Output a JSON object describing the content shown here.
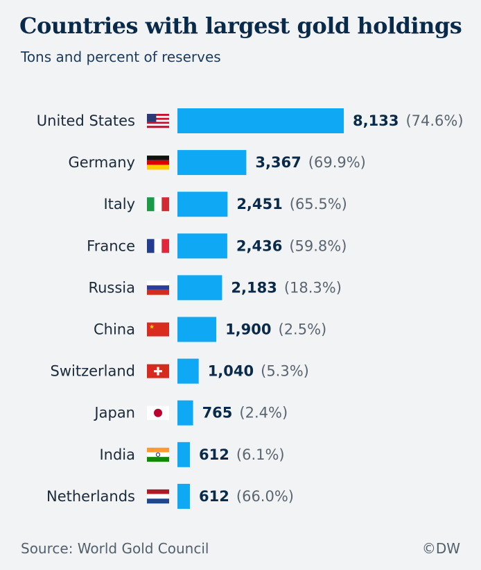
{
  "header": {
    "title": "Countries with largest gold holdings",
    "subtitle": "Tons and percent of reserves"
  },
  "footer": {
    "source": "Source: World Gold Council",
    "credit": "©DW"
  },
  "colors": {
    "bar": "#0ea8f4",
    "value_text": "#0a2a4a",
    "pct_text": "#5a6570",
    "label_text": "#1a2a3a"
  },
  "chart_data": {
    "type": "bar",
    "orientation": "horizontal",
    "categories": [
      "United States",
      "Germany",
      "Italy",
      "France",
      "Russia",
      "China",
      "Switzerland",
      "Japan",
      "India",
      "Netherlands"
    ],
    "flags": [
      "us-flag-icon",
      "germany-flag-icon",
      "italy-flag-icon",
      "france-flag-icon",
      "russia-flag-icon",
      "china-flag-icon",
      "switzerland-flag-icon",
      "japan-flag-icon",
      "india-flag-icon",
      "netherlands-flag-icon"
    ],
    "values": [
      8133,
      3367,
      2451,
      2436,
      2183,
      1900,
      1040,
      765,
      612,
      612
    ],
    "value_labels": [
      "8,133",
      "3,367",
      "2,451",
      "2,436",
      "2,183",
      "1,900",
      "1,040",
      "765",
      "612",
      "612"
    ],
    "percent_labels": [
      "(74.6%)",
      "(69.9%)",
      "(65.5%)",
      "(59.8%)",
      "(18.3%)",
      "(2.5%)",
      "(5.3%)",
      "(2.4%)",
      "(6.1%)",
      "(66.0%)"
    ],
    "xlim": [
      0,
      8133
    ],
    "grid": false,
    "legend": "none"
  }
}
